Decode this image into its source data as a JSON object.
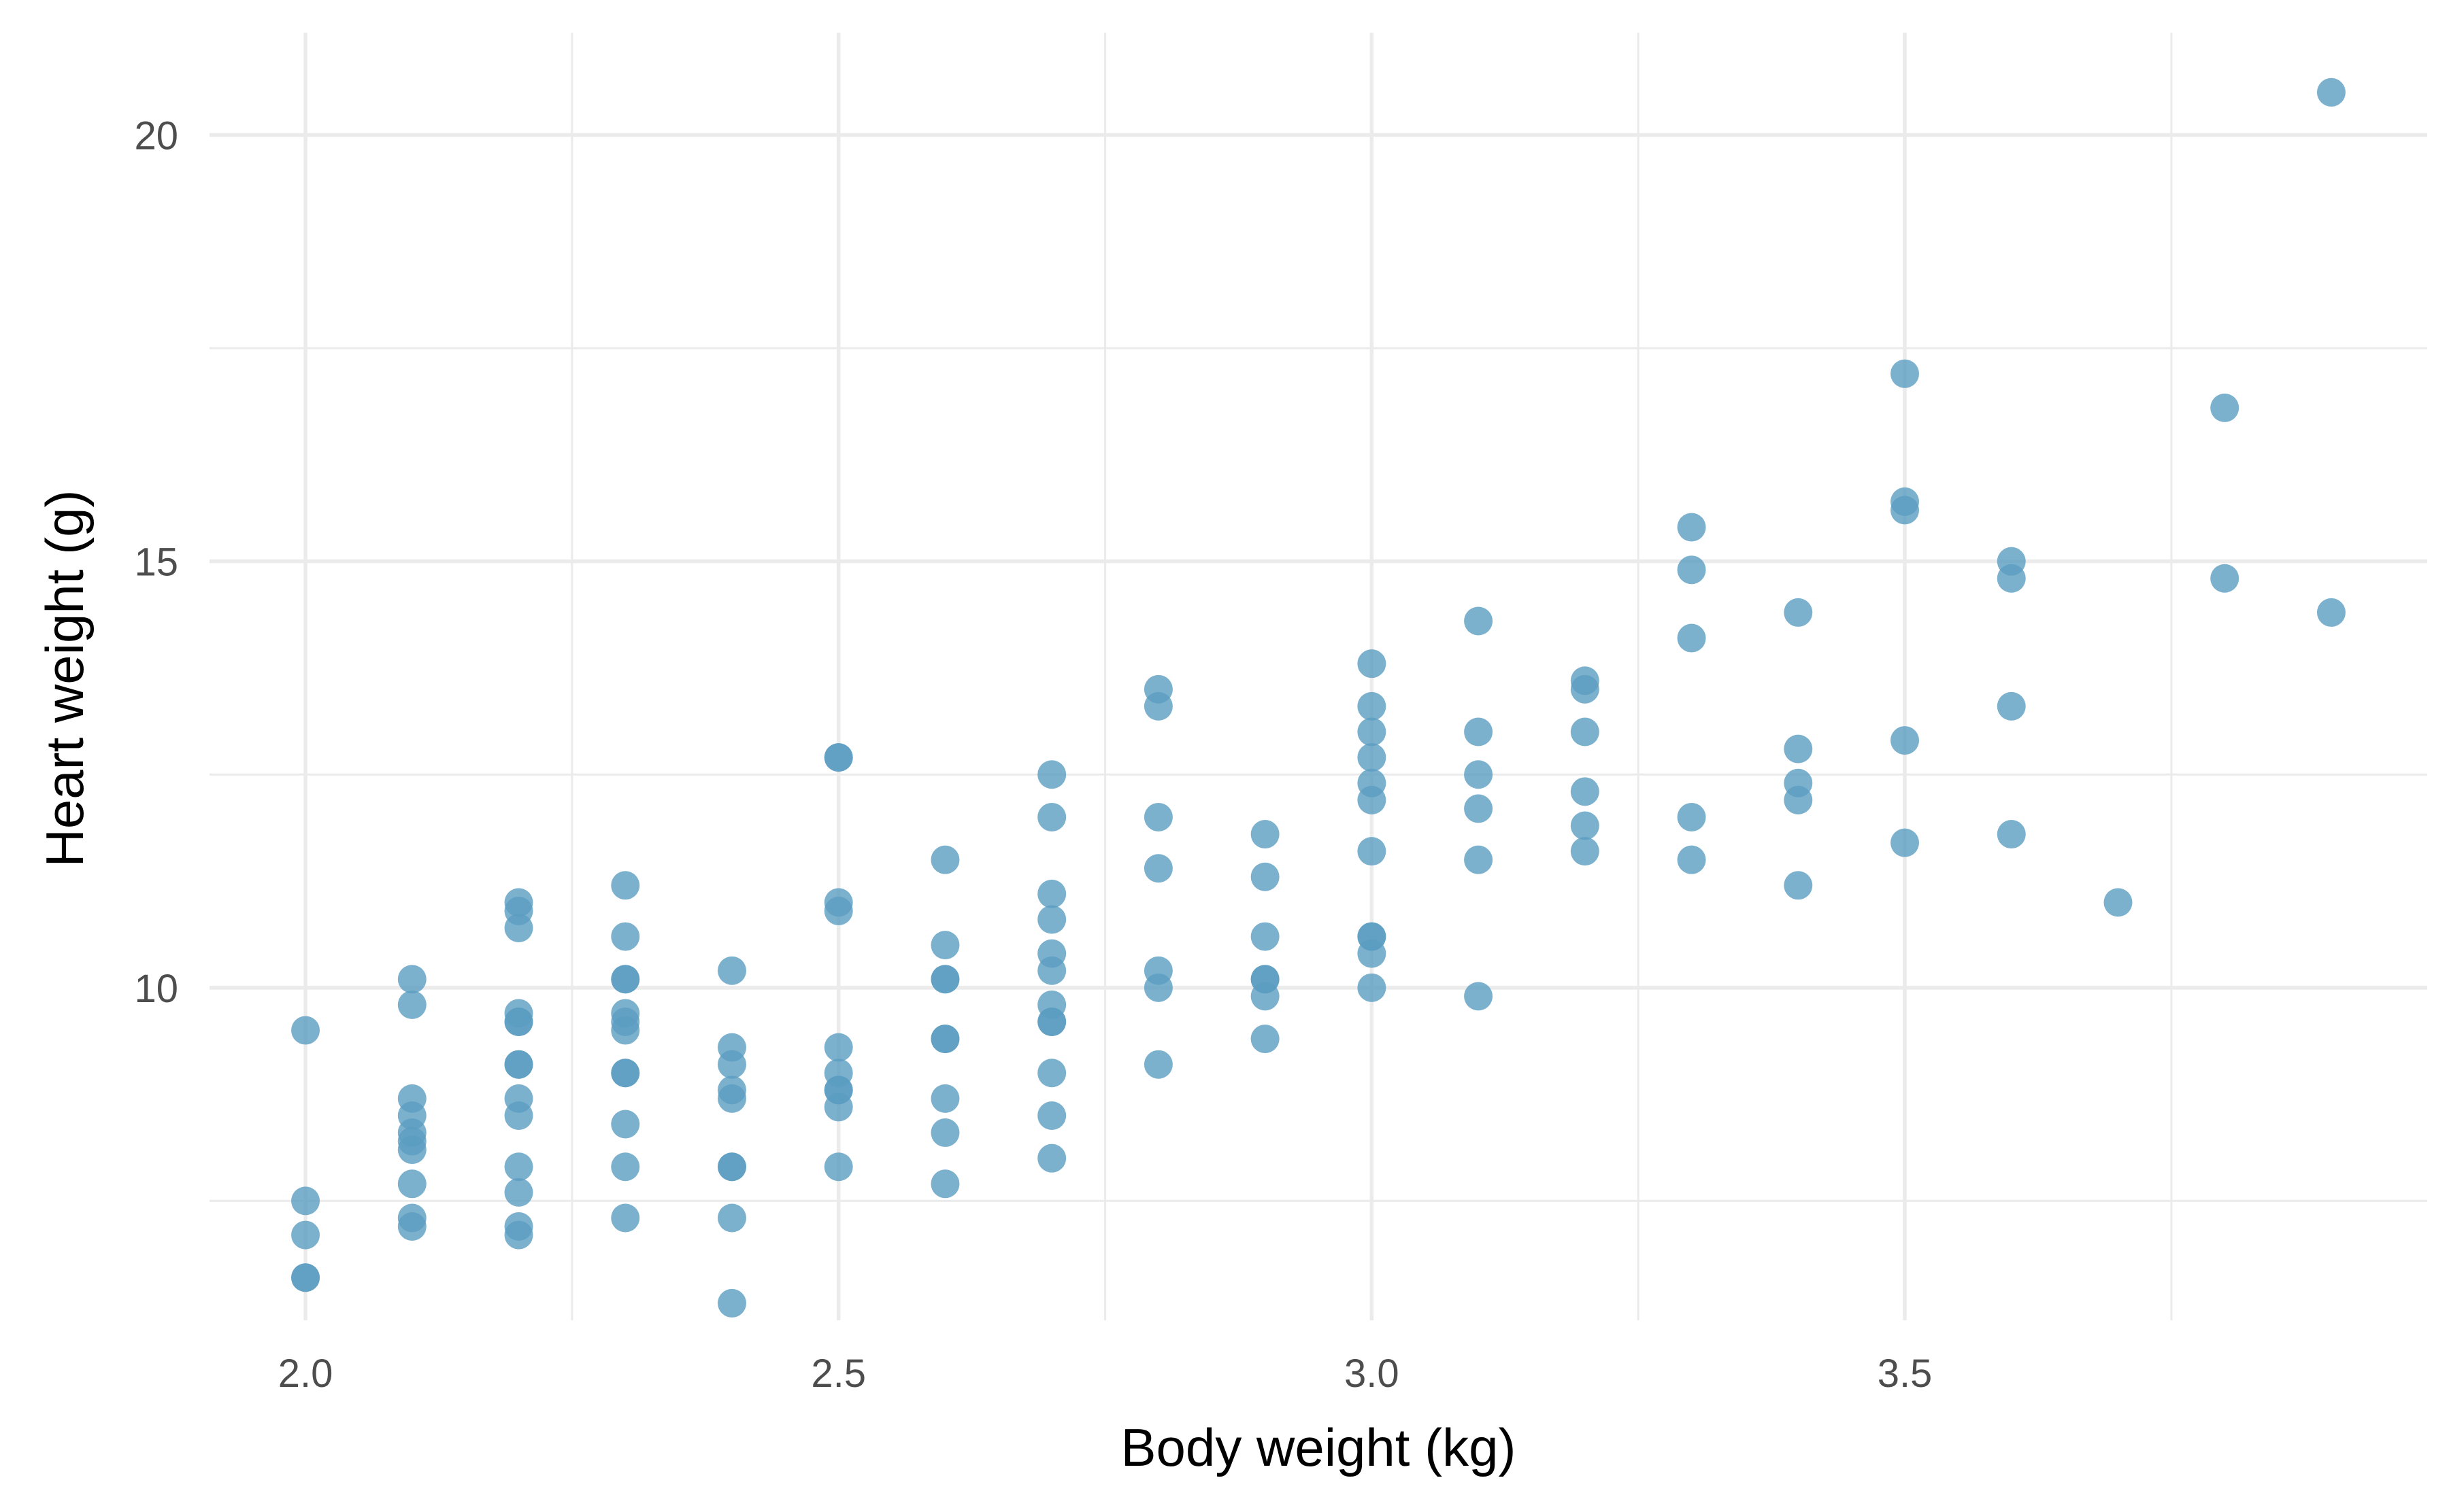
{
  "chart_data": {
    "type": "scatter",
    "title": "",
    "xlabel": "Body weight (kg)",
    "ylabel": "Heart weight (g)",
    "xlim": [
      1.91,
      3.99
    ],
    "ylim": [
      6.1,
      21.2
    ],
    "x_major_ticks": [
      2.0,
      2.5,
      3.0,
      3.5
    ],
    "x_tick_labels": [
      "2.0",
      "2.5",
      "3.0",
      "3.5"
    ],
    "x_minor_ticks": [
      2.25,
      2.75,
      3.25,
      3.75
    ],
    "y_major_ticks": [
      10,
      15,
      20
    ],
    "y_tick_labels": [
      "10",
      "15",
      "20"
    ],
    "y_minor_ticks": [
      7.5,
      12.5,
      17.5
    ],
    "grid": true,
    "legend": "none",
    "point_color": "#5b9ec2",
    "point_opacity": 0.8,
    "points": [
      [
        2.0,
        9.5
      ],
      [
        2.0,
        7.5
      ],
      [
        2.0,
        7.1
      ],
      [
        2.0,
        6.6
      ],
      [
        2.0,
        6.6
      ],
      [
        2.1,
        10.1
      ],
      [
        2.1,
        9.8
      ],
      [
        2.1,
        8.7
      ],
      [
        2.1,
        8.5
      ],
      [
        2.1,
        8.3
      ],
      [
        2.1,
        8.2
      ],
      [
        2.1,
        8.1
      ],
      [
        2.1,
        7.7
      ],
      [
        2.1,
        7.3
      ],
      [
        2.1,
        7.2
      ],
      [
        2.2,
        11.0
      ],
      [
        2.2,
        10.9
      ],
      [
        2.2,
        10.7
      ],
      [
        2.2,
        9.7
      ],
      [
        2.2,
        9.6
      ],
      [
        2.2,
        9.6
      ],
      [
        2.2,
        9.1
      ],
      [
        2.2,
        9.1
      ],
      [
        2.2,
        8.7
      ],
      [
        2.2,
        8.5
      ],
      [
        2.2,
        7.9
      ],
      [
        2.2,
        7.6
      ],
      [
        2.2,
        7.2
      ],
      [
        2.2,
        7.1
      ],
      [
        2.3,
        11.2
      ],
      [
        2.3,
        10.6
      ],
      [
        2.3,
        10.1
      ],
      [
        2.3,
        10.1
      ],
      [
        2.3,
        9.7
      ],
      [
        2.3,
        9.6
      ],
      [
        2.3,
        9.5
      ],
      [
        2.3,
        9.0
      ],
      [
        2.3,
        9.0
      ],
      [
        2.3,
        8.4
      ],
      [
        2.3,
        7.9
      ],
      [
        2.3,
        7.3
      ],
      [
        2.4,
        10.2
      ],
      [
        2.4,
        9.3
      ],
      [
        2.4,
        9.1
      ],
      [
        2.4,
        8.8
      ],
      [
        2.4,
        8.7
      ],
      [
        2.4,
        7.9
      ],
      [
        2.4,
        7.9
      ],
      [
        2.4,
        7.3
      ],
      [
        2.4,
        6.3
      ],
      [
        2.5,
        12.7
      ],
      [
        2.5,
        12.7
      ],
      [
        2.5,
        11.0
      ],
      [
        2.5,
        10.9
      ],
      [
        2.5,
        9.3
      ],
      [
        2.5,
        9.0
      ],
      [
        2.5,
        8.8
      ],
      [
        2.5,
        8.8
      ],
      [
        2.5,
        8.6
      ],
      [
        2.5,
        7.9
      ],
      [
        2.6,
        11.5
      ],
      [
        2.6,
        10.5
      ],
      [
        2.6,
        10.1
      ],
      [
        2.6,
        10.1
      ],
      [
        2.6,
        9.4
      ],
      [
        2.6,
        9.4
      ],
      [
        2.6,
        8.7
      ],
      [
        2.6,
        8.3
      ],
      [
        2.6,
        7.7
      ],
      [
        2.7,
        12.5
      ],
      [
        2.7,
        12.0
      ],
      [
        2.7,
        11.1
      ],
      [
        2.7,
        10.8
      ],
      [
        2.7,
        10.4
      ],
      [
        2.7,
        10.2
      ],
      [
        2.7,
        9.8
      ],
      [
        2.7,
        9.6
      ],
      [
        2.7,
        9.6
      ],
      [
        2.7,
        9.0
      ],
      [
        2.7,
        8.5
      ],
      [
        2.7,
        8.0
      ],
      [
        2.8,
        13.5
      ],
      [
        2.8,
        13.3
      ],
      [
        2.8,
        12.0
      ],
      [
        2.8,
        11.4
      ],
      [
        2.8,
        10.2
      ],
      [
        2.8,
        10.0
      ],
      [
        2.8,
        9.1
      ],
      [
        2.9,
        11.8
      ],
      [
        2.9,
        11.3
      ],
      [
        2.9,
        10.6
      ],
      [
        2.9,
        10.1
      ],
      [
        2.9,
        10.1
      ],
      [
        2.9,
        9.9
      ],
      [
        2.9,
        9.4
      ],
      [
        3.0,
        13.8
      ],
      [
        3.0,
        13.3
      ],
      [
        3.0,
        13.0
      ],
      [
        3.0,
        12.7
      ],
      [
        3.0,
        12.4
      ],
      [
        3.0,
        12.2
      ],
      [
        3.0,
        11.6
      ],
      [
        3.0,
        10.6
      ],
      [
        3.0,
        10.6
      ],
      [
        3.0,
        10.4
      ],
      [
        3.0,
        10.0
      ],
      [
        3.1,
        14.3
      ],
      [
        3.1,
        13.0
      ],
      [
        3.1,
        12.5
      ],
      [
        3.1,
        12.1
      ],
      [
        3.1,
        11.5
      ],
      [
        3.1,
        9.9
      ],
      [
        3.2,
        13.6
      ],
      [
        3.2,
        13.5
      ],
      [
        3.2,
        13.0
      ],
      [
        3.2,
        12.3
      ],
      [
        3.2,
        11.9
      ],
      [
        3.2,
        11.6
      ],
      [
        3.3,
        15.4
      ],
      [
        3.3,
        14.9
      ],
      [
        3.3,
        14.1
      ],
      [
        3.3,
        12.0
      ],
      [
        3.3,
        11.5
      ],
      [
        3.4,
        14.4
      ],
      [
        3.4,
        12.8
      ],
      [
        3.4,
        12.4
      ],
      [
        3.4,
        12.2
      ],
      [
        3.4,
        11.2
      ],
      [
        3.5,
        17.2
      ],
      [
        3.5,
        15.7
      ],
      [
        3.5,
        15.6
      ],
      [
        3.5,
        12.9
      ],
      [
        3.5,
        11.7
      ],
      [
        3.6,
        15.0
      ],
      [
        3.6,
        14.8
      ],
      [
        3.6,
        13.3
      ],
      [
        3.6,
        11.8
      ],
      [
        3.7,
        11.0
      ],
      [
        3.8,
        16.8
      ],
      [
        3.8,
        14.8
      ],
      [
        3.9,
        20.5
      ],
      [
        3.9,
        14.4
      ]
    ]
  }
}
